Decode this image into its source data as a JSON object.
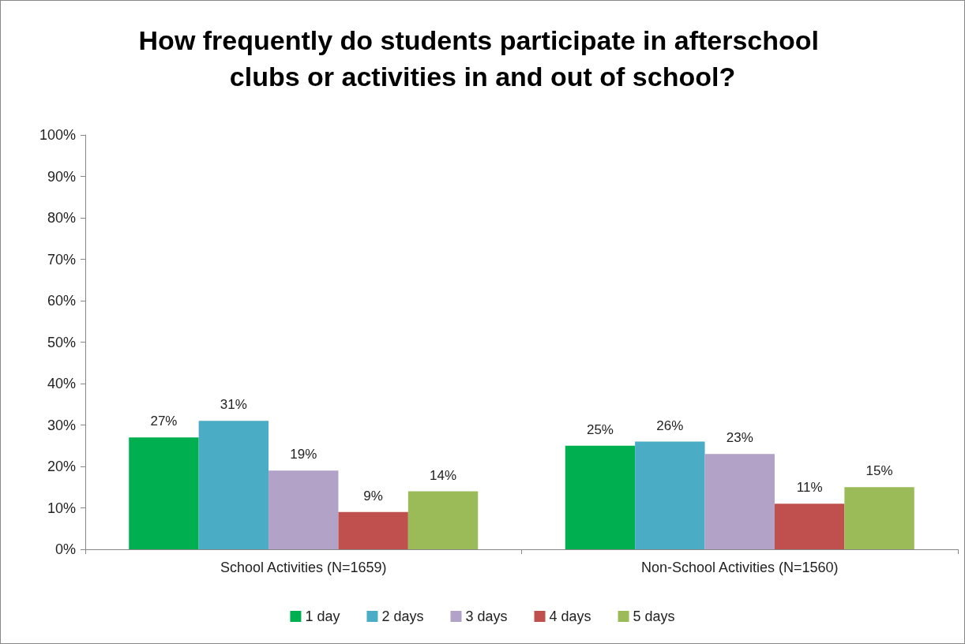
{
  "chart_data": {
    "type": "bar",
    "title": "How frequently do students participate in afterschool clubs or activities in and out of school?",
    "categories": [
      "School Activities (N=1659)",
      "Non-School Activities (N=1560)"
    ],
    "series": [
      {
        "name": "1 day",
        "color": "#00b050",
        "values": [
          27,
          25
        ],
        "value_labels": [
          "27%",
          "25%"
        ]
      },
      {
        "name": "2 days",
        "color": "#4bacc6",
        "values": [
          31,
          26
        ],
        "value_labels": [
          "31%",
          "26%"
        ]
      },
      {
        "name": "3 days",
        "color": "#b3a2c7",
        "values": [
          19,
          23
        ],
        "value_labels": [
          "19%",
          "23%"
        ]
      },
      {
        "name": "4 days",
        "color": "#c0504d",
        "values": [
          9,
          11
        ],
        "value_labels": [
          "9%",
          "11%"
        ]
      },
      {
        "name": "5 days",
        "color": "#9bbb59",
        "values": [
          14,
          15
        ],
        "value_labels": [
          "14%",
          "15%"
        ]
      }
    ],
    "ylim": [
      0,
      100
    ],
    "yticks": [
      {
        "value": 0,
        "label": "0%"
      },
      {
        "value": 10,
        "label": "10%"
      },
      {
        "value": 20,
        "label": "20%"
      },
      {
        "value": 30,
        "label": "30%"
      },
      {
        "value": 40,
        "label": "40%"
      },
      {
        "value": 50,
        "label": "50%"
      },
      {
        "value": 60,
        "label": "60%"
      },
      {
        "value": 70,
        "label": "70%"
      },
      {
        "value": 80,
        "label": "80%"
      },
      {
        "value": 90,
        "label": "90%"
      },
      {
        "value": 100,
        "label": "100%"
      }
    ],
    "grid": false,
    "legend": "bottom"
  }
}
